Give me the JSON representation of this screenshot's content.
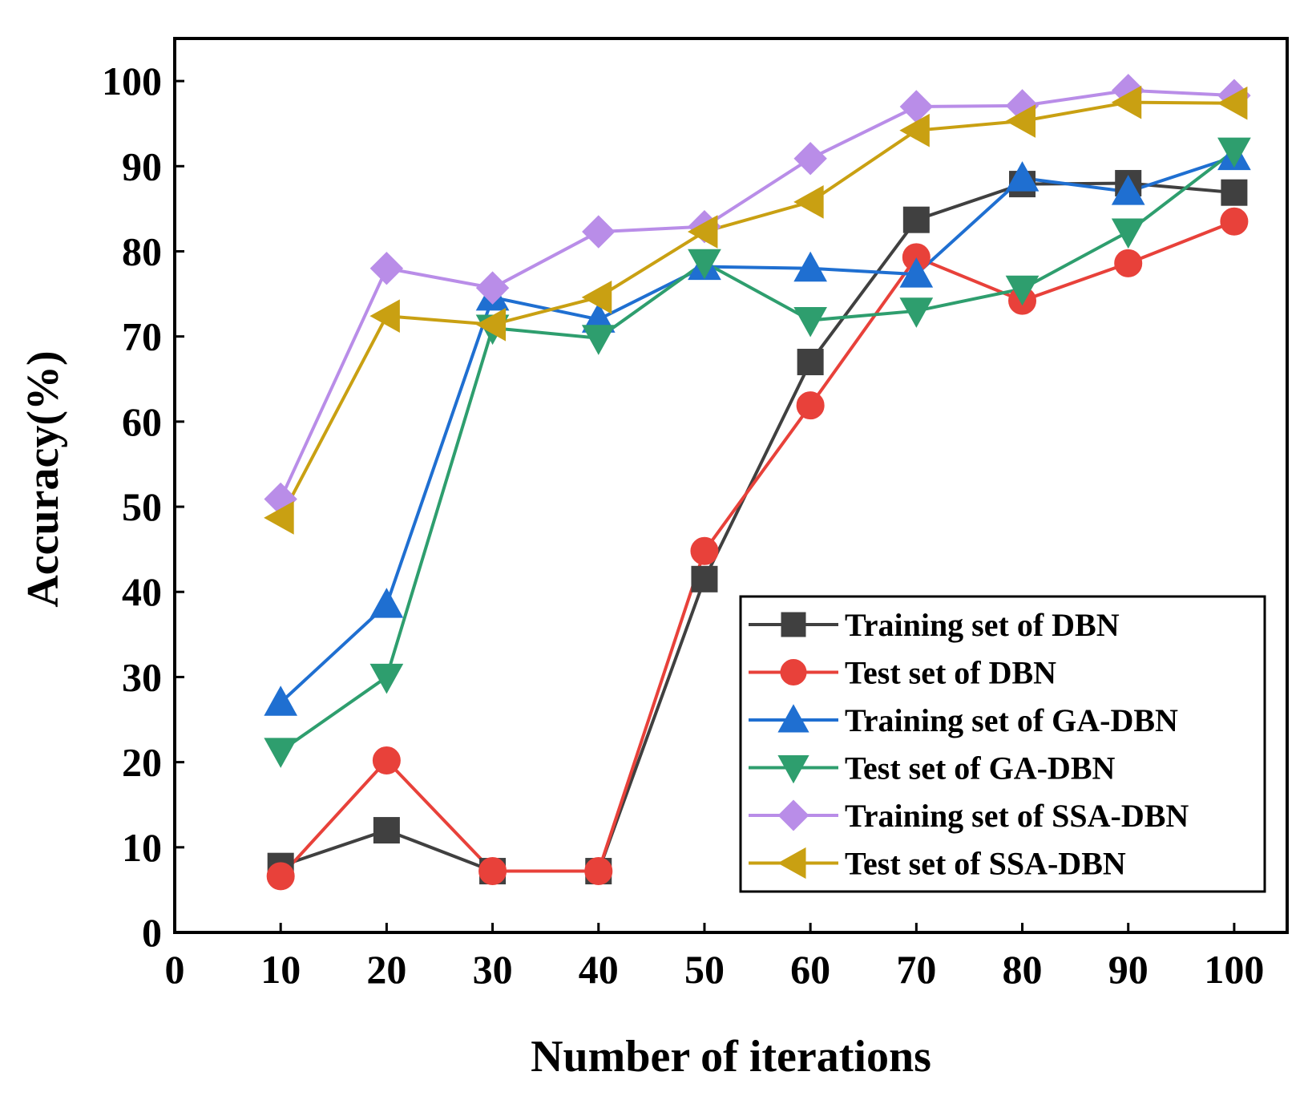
{
  "chart_data": {
    "type": "line",
    "title": "",
    "xlabel": "Number of iterations",
    "ylabel": "Accuracy(%)",
    "xlim": [
      0,
      105
    ],
    "ylim": [
      0,
      105
    ],
    "x_ticks": [
      0,
      10,
      20,
      30,
      40,
      50,
      60,
      70,
      80,
      90,
      100
    ],
    "y_ticks": [
      0,
      10,
      20,
      30,
      40,
      50,
      60,
      70,
      80,
      90,
      100
    ],
    "x": [
      10,
      20,
      30,
      40,
      50,
      60,
      70,
      80,
      90,
      100
    ],
    "legend_position": "bottom-right",
    "grid": false,
    "series": [
      {
        "name": "Training set of DBN",
        "color": "#404040",
        "marker": "square",
        "values": [
          7.8,
          12.0,
          7.2,
          7.2,
          41.5,
          67.0,
          83.7,
          87.9,
          88.0,
          86.9
        ]
      },
      {
        "name": "Test set of DBN",
        "color": "#e8413a",
        "marker": "circle",
        "values": [
          6.6,
          20.2,
          7.2,
          7.2,
          44.8,
          61.9,
          79.3,
          74.2,
          78.6,
          83.5
        ]
      },
      {
        "name": "Training set of GA-DBN",
        "color": "#1f6fd1",
        "marker": "triangle-up",
        "values": [
          27.0,
          38.5,
          74.6,
          72.0,
          78.2,
          78.0,
          77.3,
          88.6,
          87.0,
          91.1
        ]
      },
      {
        "name": "Test set of GA-DBN",
        "color": "#2e9e6e",
        "marker": "triangle-down",
        "values": [
          21.3,
          30.0,
          71.0,
          69.8,
          78.7,
          71.9,
          73.0,
          75.6,
          82.3,
          91.8
        ]
      },
      {
        "name": "Training set of SSA-DBN",
        "color": "#b98de8",
        "marker": "diamond",
        "values": [
          50.9,
          78.0,
          75.7,
          82.3,
          82.9,
          90.9,
          97.0,
          97.1,
          98.9,
          98.3
        ]
      },
      {
        "name": "Test set of SSA-DBN",
        "color": "#c9a012",
        "marker": "triangle-left",
        "values": [
          48.7,
          72.4,
          71.4,
          74.6,
          82.3,
          85.8,
          94.2,
          95.3,
          97.5,
          97.4
        ]
      }
    ]
  }
}
